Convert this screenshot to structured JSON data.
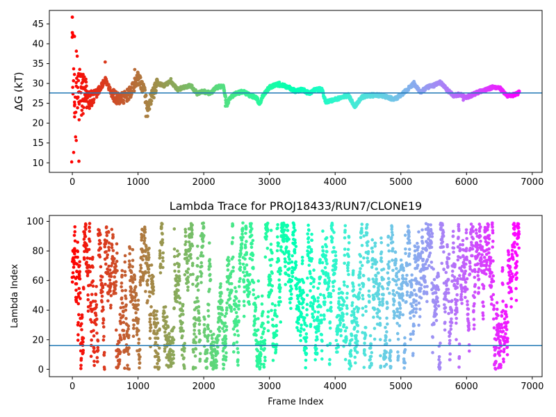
{
  "chart_data": [
    {
      "type": "scatter",
      "title": "",
      "xlabel": "",
      "ylabel": "ΔG (kT)",
      "xlim": [
        -350,
        7150
      ],
      "ylim": [
        7.6,
        48.4
      ],
      "xticks": [
        0,
        1000,
        2000,
        3000,
        4000,
        5000,
        6000,
        7000
      ],
      "yticks": [
        10,
        15,
        20,
        25,
        30,
        35,
        40,
        45
      ],
      "hline": 27.6,
      "hline_color": "#1f77b4",
      "colormap": "rainbow (red at frame 0 to violet at last frame)",
      "n_frames": 6800,
      "key_points": [
        {
          "x": 0,
          "y": 46.7
        },
        {
          "x": 0,
          "y": 42.8
        },
        {
          "x": 100,
          "y": 10.4
        },
        {
          "x": 500,
          "y": 35.4
        },
        {
          "x": 950,
          "y": 33.5
        },
        {
          "x": 1120,
          "y": 21.7
        },
        {
          "x": 1500,
          "y": 31.2
        },
        {
          "x": 2330,
          "y": 24.3
        },
        {
          "x": 3150,
          "y": 30.3
        },
        {
          "x": 4300,
          "y": 24.0
        },
        {
          "x": 5200,
          "y": 30.5
        },
        {
          "x": 5600,
          "y": 30.5
        },
        {
          "x": 5950,
          "y": 25.8
        },
        {
          "x": 6800,
          "y": 27.7
        }
      ],
      "trend": {
        "x": [
          50,
          200,
          300,
          400,
          500,
          600,
          700,
          800,
          900,
          1000,
          1100,
          1150,
          1200,
          1300,
          1400,
          1500,
          1600,
          1700,
          1800,
          1900,
          2000,
          2100,
          2200,
          2300,
          2350,
          2400,
          2500,
          2600,
          2700,
          2800,
          2850,
          2900,
          3000,
          3100,
          3200,
          3300,
          3400,
          3500,
          3600,
          3700,
          3800,
          3850,
          3900,
          4000,
          4100,
          4200,
          4300,
          4400,
          4500,
          4600,
          4700,
          4800,
          4900,
          5000,
          5100,
          5200,
          5300,
          5400,
          5500,
          5600,
          5700,
          5800,
          5900,
          6000,
          6100,
          6200,
          6300,
          6400,
          6500,
          6600,
          6700,
          6800
        ],
        "y": [
          27.5,
          27.0,
          26.0,
          28.0,
          31.0,
          27.5,
          26.0,
          26.5,
          28.0,
          31.5,
          28.0,
          22.5,
          26.5,
          30.0,
          29.5,
          30.5,
          28.5,
          29.0,
          29.5,
          27.5,
          28.0,
          27.5,
          29.0,
          29.5,
          24.5,
          26.5,
          27.5,
          28.0,
          27.0,
          26.5,
          24.8,
          27.0,
          29.0,
          29.8,
          29.5,
          29.0,
          28.0,
          28.5,
          27.5,
          28.5,
          28.5,
          25.5,
          25.5,
          26.0,
          26.5,
          27.0,
          24.2,
          26.5,
          27.0,
          27.0,
          27.0,
          26.5,
          26.0,
          27.0,
          28.5,
          30.0,
          27.8,
          29.0,
          29.5,
          30.3,
          28.5,
          27.0,
          27.2,
          26.6,
          27.2,
          28.0,
          28.5,
          29.0,
          29.0,
          27.0,
          27.0,
          27.7
        ]
      }
    },
    {
      "type": "scatter",
      "title": "Lambda Trace for PROJ18433/RUN7/CLONE19",
      "xlabel": "Frame Index",
      "ylabel": "Lambda Index",
      "xlim": [
        -350,
        7150
      ],
      "ylim": [
        -5,
        104
      ],
      "xticks": [
        0,
        1000,
        2000,
        3000,
        4000,
        5000,
        6000,
        7000
      ],
      "yticks": [
        0,
        20,
        40,
        60,
        80,
        100
      ],
      "hline": 16,
      "hline_color": "#1f77b4",
      "colormap": "rainbow (red at frame 0 to violet at last frame)",
      "n_frames": 6800,
      "y_range": [
        0,
        99
      ]
    }
  ]
}
